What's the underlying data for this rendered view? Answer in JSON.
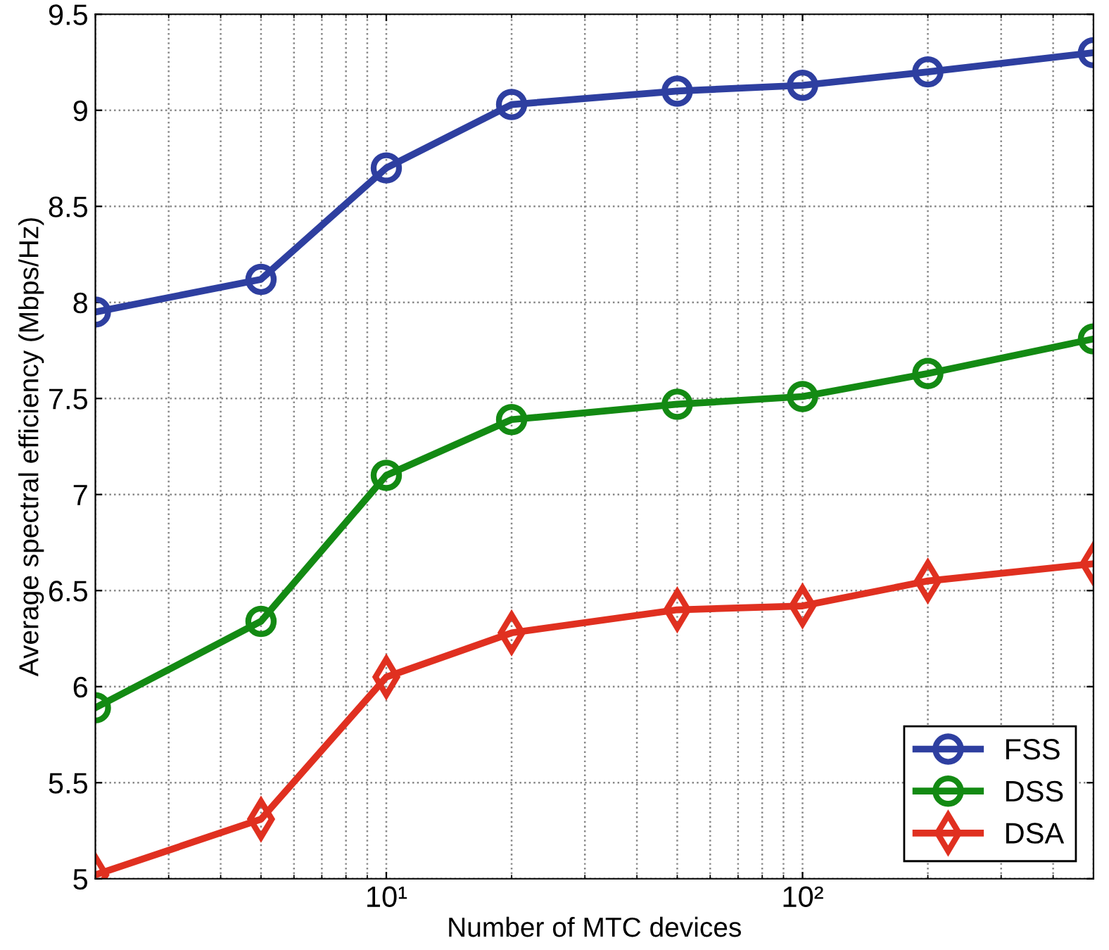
{
  "chart_data": {
    "type": "line",
    "xlabel": "Number of MTC devices",
    "ylabel": "Average spectral efficiency (Mbps/Hz)",
    "x": [
      2,
      5,
      10,
      20,
      50,
      100,
      200,
      500
    ],
    "series": [
      {
        "name": "FSS",
        "color": "#2e3fa0",
        "marker": "circle",
        "values": [
          7.95,
          8.12,
          8.7,
          9.03,
          9.1,
          9.13,
          9.2,
          9.3
        ]
      },
      {
        "name": "DSS",
        "color": "#138a13",
        "marker": "circle",
        "values": [
          5.89,
          6.34,
          7.1,
          7.39,
          7.47,
          7.51,
          7.63,
          7.81
        ]
      },
      {
        "name": "DSA",
        "color": "#e03020",
        "marker": "diamond",
        "values": [
          5.02,
          5.31,
          6.05,
          6.28,
          6.4,
          6.42,
          6.55,
          6.64
        ]
      }
    ],
    "log": "x",
    "xlim": [
      2,
      500
    ],
    "xticks": [
      {
        "value": 10,
        "label": "10¹"
      },
      {
        "value": 100,
        "label": "10²"
      }
    ],
    "ylim": [
      5,
      9.5
    ],
    "yticks": [
      5,
      5.5,
      6,
      6.5,
      7,
      7.5,
      8,
      8.5,
      9,
      9.5
    ],
    "grid": true,
    "legend": "bottom right",
    "line_style": "solid"
  }
}
